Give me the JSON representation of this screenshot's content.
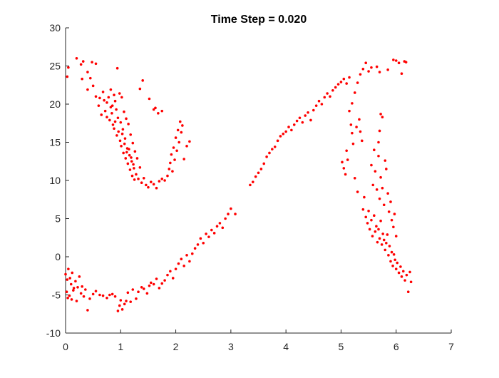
{
  "chart_data": {
    "type": "scatter",
    "title": "Time Step = 0.020",
    "xlabel": "",
    "ylabel": "",
    "xlim": [
      0,
      7
    ],
    "ylim": [
      -10,
      30
    ],
    "xticks": [
      0,
      1,
      2,
      3,
      4,
      5,
      6,
      7
    ],
    "yticks": [
      -10,
      -5,
      0,
      5,
      10,
      15,
      20,
      25,
      30
    ],
    "grid": false,
    "marker_color": "#ff0000",
    "series": [
      {
        "points": [
          [
            0.0,
            -2.3
          ],
          [
            0.03,
            -3.0
          ],
          [
            0.05,
            -1.6
          ],
          [
            0.08,
            -2.8
          ],
          [
            0.1,
            -3.6
          ],
          [
            0.12,
            -2.1
          ],
          [
            0.15,
            -4.1
          ],
          [
            0.02,
            -4.6
          ],
          [
            0.04,
            -5.4
          ],
          [
            0.07,
            -5.1
          ],
          [
            0.11,
            -5.6
          ],
          [
            0.14,
            -4.4
          ],
          [
            0.18,
            -3.2
          ],
          [
            0.2,
            -5.8
          ],
          [
            0.22,
            -4.0
          ],
          [
            0.25,
            -2.6
          ],
          [
            0.28,
            -4.8
          ],
          [
            0.3,
            -3.9
          ],
          [
            0.33,
            -5.2
          ],
          [
            0.36,
            -4.3
          ],
          [
            0.4,
            -7.0
          ],
          [
            0.44,
            -5.5
          ],
          [
            0.5,
            -4.9
          ],
          [
            0.55,
            -4.5
          ],
          [
            0.62,
            -5.0
          ],
          [
            0.68,
            -5.1
          ],
          [
            0.75,
            -5.4
          ],
          [
            0.8,
            -5.0
          ],
          [
            0.85,
            -4.9
          ],
          [
            0.9,
            -5.2
          ],
          [
            0.95,
            -7.1
          ],
          [
            0.98,
            -6.4
          ],
          [
            1.0,
            -5.7
          ],
          [
            1.03,
            -6.9
          ],
          [
            1.07,
            -6.2
          ],
          [
            1.1,
            -5.8
          ],
          [
            1.13,
            -4.7
          ],
          [
            1.18,
            -5.9
          ],
          [
            1.22,
            -4.3
          ],
          [
            1.28,
            -5.5
          ],
          [
            1.32,
            -4.6
          ],
          [
            1.38,
            -4.0
          ],
          [
            1.42,
            -4.2
          ],
          [
            1.48,
            -4.8
          ],
          [
            1.52,
            -3.8
          ],
          [
            1.55,
            -3.4
          ],
          [
            1.6,
            -3.6
          ],
          [
            1.65,
            -2.9
          ],
          [
            1.7,
            -4.1
          ],
          [
            1.75,
            -3.5
          ],
          [
            1.8,
            -3.1
          ],
          [
            1.85,
            -2.4
          ],
          [
            1.9,
            -1.9
          ],
          [
            1.95,
            -2.8
          ],
          [
            2.0,
            -1.6
          ],
          [
            2.05,
            -0.9
          ],
          [
            2.1,
            -0.3
          ],
          [
            2.15,
            -1.2
          ],
          [
            2.2,
            0.2
          ],
          [
            2.25,
            -0.6
          ],
          [
            2.3,
            0.4
          ],
          [
            2.35,
            1.1
          ],
          [
            2.4,
            1.6
          ],
          [
            2.45,
            2.4
          ],
          [
            2.5,
            1.8
          ],
          [
            2.55,
            3.0
          ],
          [
            2.6,
            2.6
          ],
          [
            2.65,
            3.5
          ],
          [
            2.7,
            3.1
          ],
          [
            2.75,
            4.0
          ],
          [
            2.8,
            4.4
          ],
          [
            2.85,
            3.8
          ],
          [
            2.9,
            5.0
          ],
          [
            2.95,
            5.6
          ],
          [
            3.0,
            6.3
          ],
          [
            3.08,
            5.6
          ],
          [
            3.35,
            9.4
          ],
          [
            3.4,
            9.8
          ],
          [
            3.45,
            10.5
          ],
          [
            3.5,
            11.0
          ],
          [
            3.55,
            11.5
          ],
          [
            3.6,
            12.2
          ],
          [
            3.65,
            13.1
          ],
          [
            3.7,
            13.6
          ],
          [
            3.75,
            14.1
          ],
          [
            3.8,
            14.4
          ],
          [
            3.85,
            15.2
          ],
          [
            3.9,
            15.8
          ],
          [
            3.95,
            16.1
          ],
          [
            4.0,
            16.4
          ],
          [
            4.05,
            17.0
          ],
          [
            4.1,
            16.6
          ],
          [
            4.15,
            17.3
          ],
          [
            4.2,
            17.8
          ],
          [
            4.25,
            18.2
          ],
          [
            4.3,
            17.6
          ],
          [
            4.35,
            18.5
          ],
          [
            4.4,
            18.9
          ],
          [
            4.45,
            17.9
          ],
          [
            4.5,
            19.2
          ],
          [
            4.55,
            19.8
          ],
          [
            4.6,
            20.4
          ],
          [
            4.65,
            20.0
          ],
          [
            4.7,
            20.9
          ],
          [
            4.75,
            21.4
          ],
          [
            4.8,
            21.0
          ],
          [
            4.85,
            21.8
          ],
          [
            4.9,
            22.2
          ],
          [
            4.95,
            22.6
          ],
          [
            5.0,
            22.9
          ],
          [
            5.05,
            23.3
          ],
          [
            5.1,
            22.7
          ],
          [
            5.15,
            23.5
          ],
          [
            5.2,
            20.1
          ],
          [
            5.25,
            21.5
          ],
          [
            5.3,
            22.8
          ],
          [
            5.35,
            23.9
          ],
          [
            5.4,
            24.6
          ],
          [
            5.45,
            25.4
          ],
          [
            5.5,
            24.3
          ],
          [
            5.55,
            24.8
          ],
          [
            5.65,
            24.9
          ],
          [
            5.7,
            24.2
          ],
          [
            5.85,
            24.5
          ],
          [
            5.95,
            25.8
          ],
          [
            6.0,
            25.7
          ],
          [
            6.05,
            25.4
          ],
          [
            6.1,
            24.0
          ],
          [
            6.15,
            25.6
          ],
          [
            6.18,
            25.5
          ],
          [
            5.02,
            12.4
          ],
          [
            5.05,
            11.6
          ],
          [
            5.08,
            10.8
          ],
          [
            5.1,
            13.9
          ],
          [
            5.12,
            12.7
          ],
          [
            5.15,
            19.1
          ],
          [
            5.18,
            17.3
          ],
          [
            5.2,
            16.2
          ],
          [
            5.22,
            14.8
          ],
          [
            5.25,
            10.3
          ],
          [
            5.28,
            17.0
          ],
          [
            5.3,
            8.5
          ],
          [
            5.33,
            18.0
          ],
          [
            5.35,
            16.4
          ],
          [
            5.38,
            15.2
          ],
          [
            5.4,
            6.2
          ],
          [
            5.42,
            7.8
          ],
          [
            5.45,
            5.2
          ],
          [
            5.48,
            4.4
          ],
          [
            5.5,
            6.0
          ],
          [
            5.52,
            3.6
          ],
          [
            5.55,
            4.8
          ],
          [
            5.57,
            2.7
          ],
          [
            5.6,
            5.4
          ],
          [
            5.62,
            3.3
          ],
          [
            5.64,
            4.0
          ],
          [
            5.66,
            1.9
          ],
          [
            5.68,
            3.6
          ],
          [
            5.7,
            2.4
          ],
          [
            5.72,
            4.7
          ],
          [
            5.74,
            1.6
          ],
          [
            5.76,
            3.0
          ],
          [
            5.78,
            2.2
          ],
          [
            5.8,
            0.9
          ],
          [
            5.82,
            1.8
          ],
          [
            5.84,
            2.9
          ],
          [
            5.86,
            0.2
          ],
          [
            5.88,
            1.4
          ],
          [
            5.9,
            -0.6
          ],
          [
            5.92,
            0.6
          ],
          [
            5.94,
            -1.2
          ],
          [
            5.96,
            0.3
          ],
          [
            5.98,
            -0.4
          ],
          [
            6.0,
            -1.6
          ],
          [
            6.02,
            -0.8
          ],
          [
            6.05,
            -2.1
          ],
          [
            6.08,
            -1.3
          ],
          [
            6.1,
            -2.6
          ],
          [
            6.13,
            -1.9
          ],
          [
            6.16,
            -3.1
          ],
          [
            6.19,
            -2.4
          ],
          [
            6.22,
            -4.6
          ],
          [
            6.25,
            -2.0
          ],
          [
            6.27,
            -3.3
          ],
          [
            5.55,
            12.0
          ],
          [
            5.58,
            9.4
          ],
          [
            5.6,
            14.0
          ],
          [
            5.62,
            11.2
          ],
          [
            5.65,
            8.8
          ],
          [
            5.68,
            13.2
          ],
          [
            5.7,
            7.6
          ],
          [
            5.72,
            10.4
          ],
          [
            5.75,
            9.0
          ],
          [
            5.78,
            6.8
          ],
          [
            5.8,
            12.6
          ],
          [
            5.82,
            11.5
          ],
          [
            5.85,
            8.3
          ],
          [
            5.87,
            5.9
          ],
          [
            5.9,
            7.2
          ],
          [
            5.92,
            4.8
          ],
          [
            5.95,
            3.9
          ],
          [
            5.97,
            5.6
          ],
          [
            6.0,
            2.7
          ],
          [
            5.75,
            18.3
          ],
          [
            5.7,
            16.5
          ],
          [
            5.68,
            15.0
          ],
          [
            5.72,
            18.7
          ],
          [
            0.85,
            19.8
          ],
          [
            0.88,
            21.2
          ],
          [
            0.9,
            20.4
          ],
          [
            0.92,
            19.3
          ],
          [
            0.95,
            18.2
          ],
          [
            0.98,
            21.4
          ],
          [
            1.0,
            17.6
          ],
          [
            1.02,
            20.9
          ],
          [
            1.04,
            16.7
          ],
          [
            1.06,
            19.0
          ],
          [
            1.08,
            15.5
          ],
          [
            1.1,
            18.1
          ],
          [
            1.12,
            14.2
          ],
          [
            1.14,
            17.4
          ],
          [
            1.16,
            13.3
          ],
          [
            1.18,
            16.0
          ],
          [
            1.2,
            12.5
          ],
          [
            1.22,
            14.9
          ],
          [
            1.24,
            11.6
          ],
          [
            1.26,
            13.8
          ],
          [
            1.28,
            10.8
          ],
          [
            1.3,
            12.9
          ],
          [
            1.32,
            10.2
          ],
          [
            1.35,
            11.7
          ],
          [
            1.38,
            9.7
          ],
          [
            1.42,
            10.3
          ],
          [
            1.46,
            9.4
          ],
          [
            1.5,
            9.1
          ],
          [
            1.55,
            9.8
          ],
          [
            1.6,
            9.5
          ],
          [
            1.65,
            9.0
          ],
          [
            1.7,
            9.9
          ],
          [
            1.75,
            10.2
          ],
          [
            1.8,
            10.0
          ],
          [
            1.85,
            10.6
          ],
          [
            1.88,
            11.5
          ],
          [
            1.9,
            12.3
          ],
          [
            1.92,
            13.4
          ],
          [
            1.94,
            11.2
          ],
          [
            1.96,
            14.3
          ],
          [
            1.98,
            12.7
          ],
          [
            2.0,
            15.6
          ],
          [
            2.02,
            13.9
          ],
          [
            2.04,
            16.6
          ],
          [
            2.06,
            15.0
          ],
          [
            2.08,
            17.7
          ],
          [
            2.1,
            16.3
          ],
          [
            2.12,
            17.2
          ],
          [
            2.15,
            12.8
          ],
          [
            2.2,
            14.5
          ],
          [
            2.25,
            15.1
          ],
          [
            0.6,
            19.8
          ],
          [
            0.65,
            18.6
          ],
          [
            0.7,
            20.5
          ],
          [
            0.72,
            19.1
          ],
          [
            0.75,
            18.3
          ],
          [
            0.78,
            20.9
          ],
          [
            0.8,
            17.9
          ],
          [
            0.82,
            19.6
          ],
          [
            0.84,
            18.8
          ],
          [
            0.86,
            17.3
          ],
          [
            0.88,
            16.8
          ],
          [
            0.9,
            17.7
          ],
          [
            0.93,
            15.9
          ],
          [
            0.96,
            16.4
          ],
          [
            0.99,
            15.2
          ],
          [
            1.01,
            14.5
          ],
          [
            1.03,
            16.1
          ],
          [
            1.05,
            13.6
          ],
          [
            1.07,
            14.8
          ],
          [
            1.09,
            12.9
          ],
          [
            1.11,
            13.7
          ],
          [
            1.13,
            12.2
          ],
          [
            1.15,
            14.1
          ],
          [
            1.17,
            11.4
          ],
          [
            1.19,
            13.0
          ],
          [
            1.21,
            10.6
          ],
          [
            1.23,
            12.1
          ],
          [
            1.25,
            10.1
          ],
          [
            0.5,
            22.4
          ],
          [
            0.55,
            21.0
          ],
          [
            0.62,
            20.8
          ],
          [
            0.68,
            21.6
          ],
          [
            0.75,
            20.2
          ],
          [
            0.82,
            21.9
          ],
          [
            0.94,
            24.7
          ],
          [
            1.4,
            23.1
          ],
          [
            1.35,
            22.0
          ],
          [
            1.52,
            20.7
          ],
          [
            1.6,
            19.3
          ],
          [
            1.68,
            18.8
          ],
          [
            1.75,
            19.1
          ],
          [
            1.63,
            19.5
          ],
          [
            0.03,
            23.6
          ],
          [
            0.05,
            24.8
          ],
          [
            0.2,
            26.0
          ],
          [
            0.28,
            25.2
          ],
          [
            0.32,
            25.6
          ],
          [
            0.4,
            24.2
          ],
          [
            0.45,
            23.4
          ],
          [
            0.48,
            25.5
          ],
          [
            0.55,
            25.3
          ],
          [
            0.4,
            21.9
          ],
          [
            0.3,
            23.3
          ]
        ]
      }
    ]
  }
}
